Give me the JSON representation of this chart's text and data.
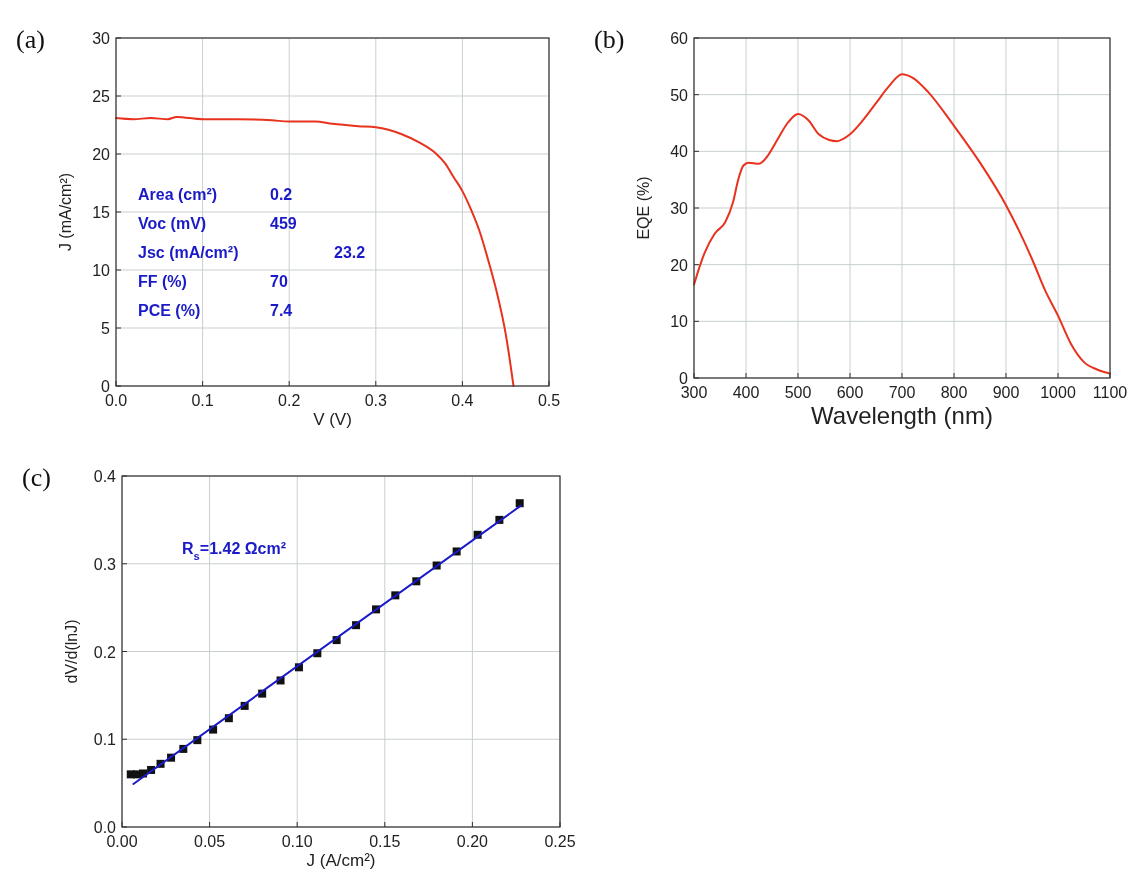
{
  "chart_data": [
    {
      "type": "line",
      "title": "(a)",
      "xlabel": "V (V)",
      "ylabel": "J (mA/cm²)",
      "xlim": [
        0,
        0.5
      ],
      "ylim": [
        0,
        30
      ],
      "xticks": [
        {
          "value": 0,
          "label": "0.0"
        },
        0.1,
        0.2,
        0.3,
        0.4,
        0.5
      ],
      "yticks": [
        0,
        5,
        10,
        15,
        20,
        25,
        30
      ],
      "grid": true,
      "annotations": [
        "Area (cm²)",
        "0.2",
        "Voc (mV)",
        "459",
        "Jsc (mA/cm²)",
        "23.2",
        "FF (%)",
        "70",
        "PCE (%)",
        "7.4"
      ],
      "series": [
        {
          "color": "#e8321e",
          "x": [
            0,
            0.02,
            0.04,
            0.06,
            0.07,
            0.1,
            0.14,
            0.18,
            0.2,
            0.23,
            0.25,
            0.28,
            0.3,
            0.33,
            0.35,
            0.37,
            0.38,
            0.39,
            0.4,
            0.41,
            0.42,
            0.43,
            0.44,
            0.45,
            0.459
          ],
          "values": [
            23.1,
            23.0,
            23.1,
            23.0,
            23.2,
            23.0,
            23.0,
            22.9,
            22.8,
            22.8,
            22.6,
            22.4,
            22.3,
            21.7,
            21.0,
            20.0,
            19.2,
            18.0,
            16.8,
            15.2,
            13.3,
            10.8,
            8.0,
            4.5,
            0
          ]
        }
      ]
    },
    {
      "type": "line",
      "title": "(b)",
      "xlabel": "Wavelength (nm)",
      "ylabel": "EQE (%)",
      "xlim": [
        300,
        1100
      ],
      "ylim": [
        0,
        60
      ],
      "xticks": [
        300,
        400,
        500,
        600,
        700,
        800,
        900,
        1000,
        1100
      ],
      "yticks": [
        0,
        10,
        20,
        30,
        40,
        50,
        60
      ],
      "grid": true,
      "series": [
        {
          "color": "#e8321e",
          "x": [
            300,
            320,
            340,
            360,
            375,
            385,
            395,
            405,
            425,
            440,
            460,
            480,
            500,
            520,
            540,
            560,
            575,
            600,
            625,
            650,
            675,
            700,
            720,
            750,
            800,
            850,
            900,
            925,
            950,
            975,
            1000,
            1025,
            1050,
            1075,
            1100
          ],
          "values": [
            16.5,
            22,
            25.5,
            27.5,
            31,
            35,
            37.5,
            38,
            37.8,
            39,
            42,
            45,
            46.6,
            45.5,
            43,
            42,
            41.8,
            43,
            45.5,
            48.5,
            51.5,
            53.6,
            53,
            50.5,
            44.5,
            38,
            30.5,
            26,
            21,
            15.5,
            11,
            6,
            2.8,
            1.5,
            0.8
          ]
        }
      ]
    },
    {
      "type": "scatter",
      "title": "(c)",
      "xlabel": "J (A/cm²)",
      "ylabel": "dV/d(lnJ)",
      "xlim": [
        0,
        0.25
      ],
      "ylim": [
        0,
        0.4
      ],
      "xticks": [
        {
          "value": 0,
          "label": "0.00"
        },
        {
          "value": 0.05,
          "label": "0.05"
        },
        {
          "value": 0.1,
          "label": "0.10"
        },
        {
          "value": 0.15,
          "label": "0.15"
        },
        {
          "value": 0.2,
          "label": "0.20"
        },
        {
          "value": 0.25,
          "label": "0.25"
        }
      ],
      "yticks": [
        {
          "value": 0,
          "label": "0.0"
        },
        0.1,
        0.2,
        0.3,
        0.4
      ],
      "grid": true,
      "annotations": [
        "R$_{s}$=1.42 Ωcm²"
      ],
      "series": [
        {
          "marker": "square",
          "color": "#111111",
          "x": [
            0.005,
            0.0085,
            0.012,
            0.0166,
            0.022,
            0.028,
            0.035,
            0.043,
            0.052,
            0.061,
            0.07,
            0.08,
            0.0905,
            0.101,
            0.1115,
            0.1225,
            0.1336,
            0.145,
            0.156,
            0.168,
            0.1796,
            0.191,
            0.203,
            0.2154,
            0.227
          ],
          "values": [
            0.06,
            0.06,
            0.061,
            0.065,
            0.072,
            0.079,
            0.089,
            0.099,
            0.111,
            0.124,
            0.138,
            0.152,
            0.167,
            0.182,
            0.198,
            0.213,
            0.23,
            0.248,
            0.264,
            0.28,
            0.298,
            0.314,
            0.333,
            0.35,
            0.369
          ]
        },
        {
          "type": "line",
          "color": "#1a1ac8",
          "x": [
            0.0065,
            0.2275
          ],
          "values": [
            0.049,
            0.366
          ]
        }
      ]
    }
  ]
}
